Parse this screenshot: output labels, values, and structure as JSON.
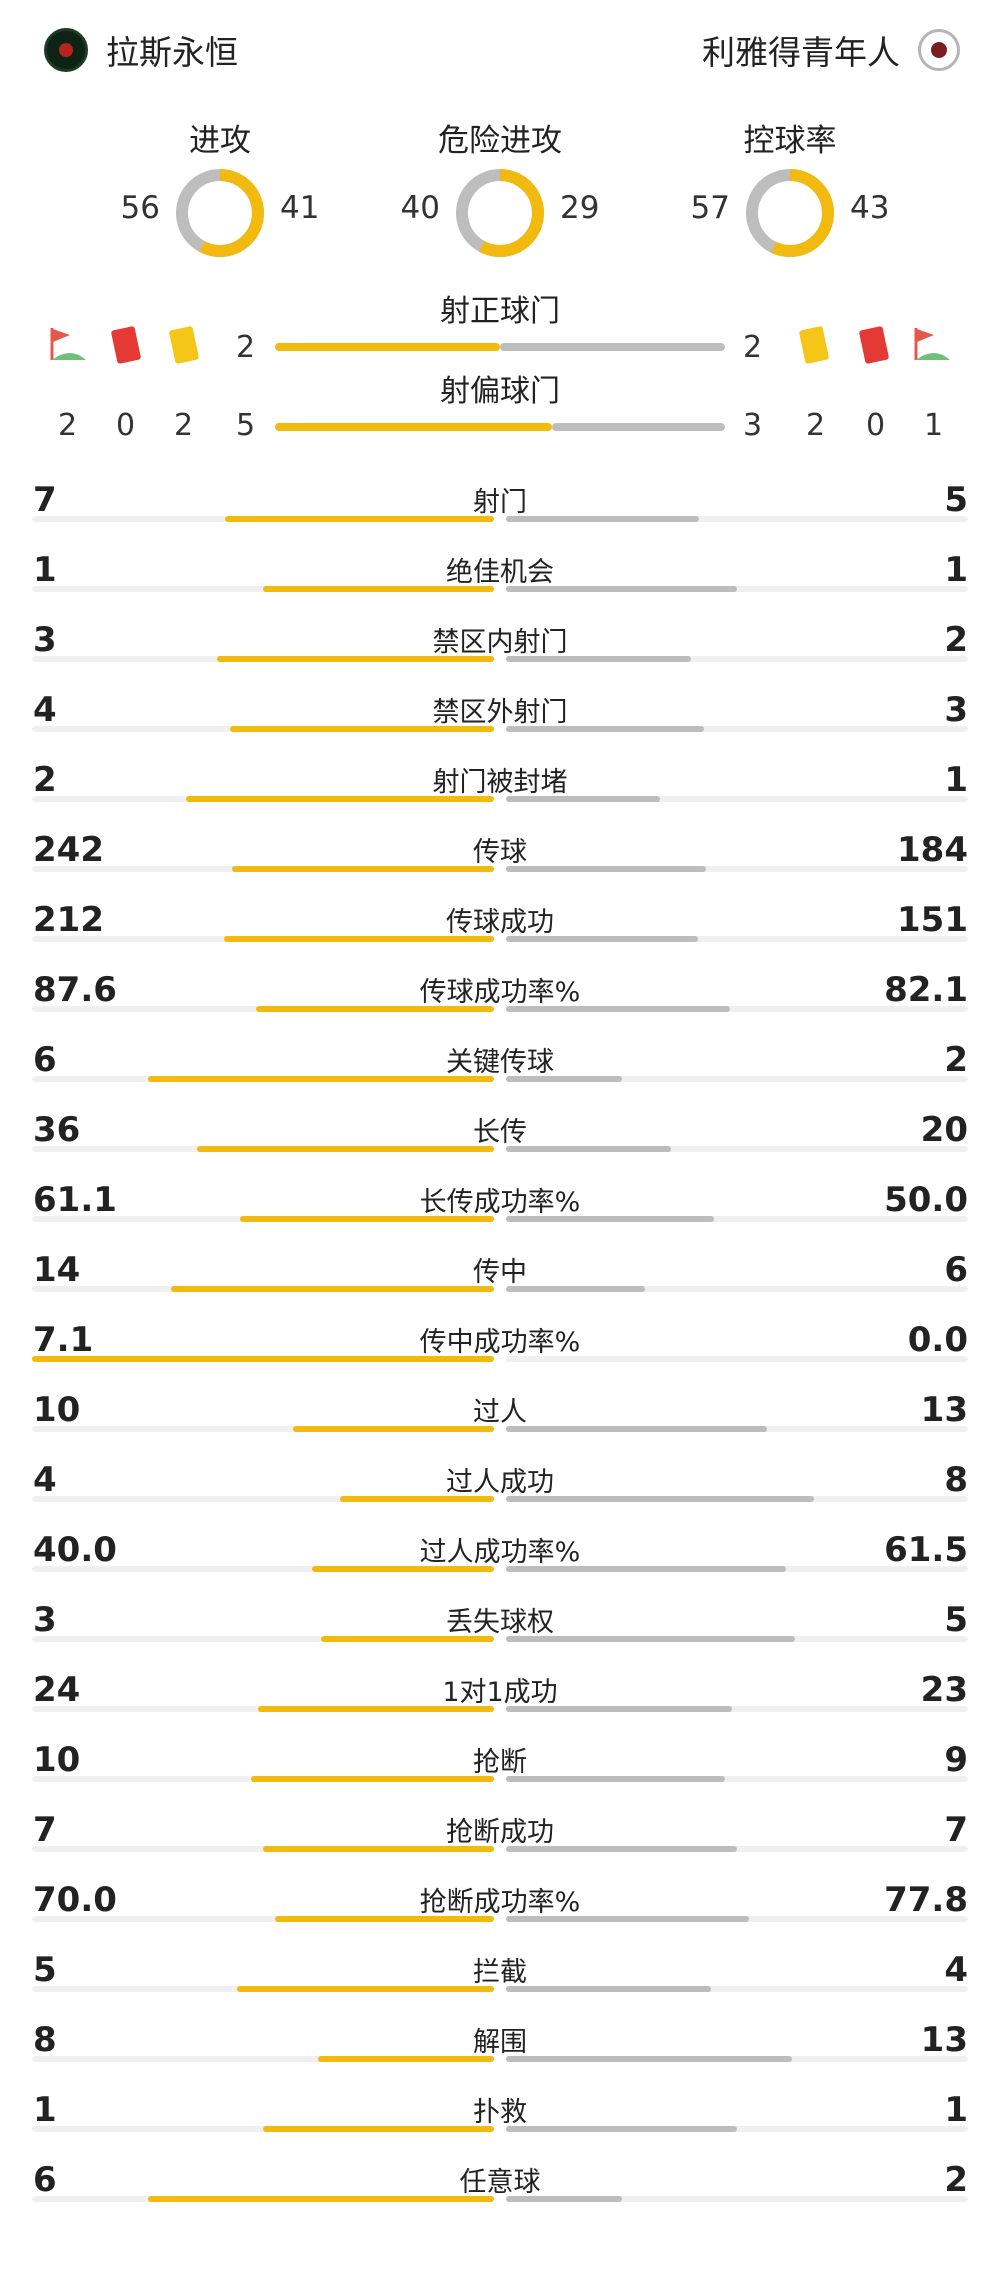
{
  "header": {
    "home_team": "拉斯永恒",
    "away_team": "利雅得青年人",
    "colors": {
      "home": "#f2b90f",
      "away": "#bdbdbd"
    }
  },
  "donuts": [
    {
      "title": "进攻",
      "home": 56,
      "away": 41
    },
    {
      "title": "危险进攻",
      "home": 40,
      "away": 29
    },
    {
      "title": "控球率",
      "home": 57,
      "away": 43
    }
  ],
  "shots_on_target": {
    "title": "射正球门",
    "home": 2,
    "away": 2,
    "icons": {
      "corner": "corner-flag-icon",
      "red": "red-card-icon",
      "yellow": "yellow-card-icon"
    }
  },
  "shots_off_target": {
    "title": "射偏球门",
    "home": 5,
    "away": 3,
    "home_corners": 2,
    "home_red_cards": 0,
    "home_yellow_cards": 2,
    "away_yellow_cards": 2,
    "away_red_cards": 0,
    "away_corners": 1
  },
  "stats": [
    {
      "label": "射门",
      "home": "7",
      "away": "5"
    },
    {
      "label": "绝佳机会",
      "home": "1",
      "away": "1"
    },
    {
      "label": "禁区内射门",
      "home": "3",
      "away": "2"
    },
    {
      "label": "禁区外射门",
      "home": "4",
      "away": "3"
    },
    {
      "label": "射门被封堵",
      "home": "2",
      "away": "1"
    },
    {
      "label": "传球",
      "home": "242",
      "away": "184"
    },
    {
      "label": "传球成功",
      "home": "212",
      "away": "151"
    },
    {
      "label": "传球成功率%",
      "home": "87.6",
      "away": "82.1"
    },
    {
      "label": "关键传球",
      "home": "6",
      "away": "2"
    },
    {
      "label": "长传",
      "home": "36",
      "away": "20"
    },
    {
      "label": "长传成功率%",
      "home": "61.1",
      "away": "50.0"
    },
    {
      "label": "传中",
      "home": "14",
      "away": "6"
    },
    {
      "label": "传中成功率%",
      "home": "7.1",
      "away": "0.0"
    },
    {
      "label": "过人",
      "home": "10",
      "away": "13"
    },
    {
      "label": "过人成功",
      "home": "4",
      "away": "8"
    },
    {
      "label": "过人成功率%",
      "home": "40.0",
      "away": "61.5"
    },
    {
      "label": "丢失球权",
      "home": "3",
      "away": "5"
    },
    {
      "label": "1对1成功",
      "home": "24",
      "away": "23"
    },
    {
      "label": "抢断",
      "home": "10",
      "away": "9"
    },
    {
      "label": "抢断成功",
      "home": "7",
      "away": "7"
    },
    {
      "label": "抢断成功率%",
      "home": "70.0",
      "away": "77.8"
    },
    {
      "label": "拦截",
      "home": "5",
      "away": "4"
    },
    {
      "label": "解围",
      "home": "8",
      "away": "13"
    },
    {
      "label": "扑救",
      "home": "1",
      "away": "1"
    },
    {
      "label": "任意球",
      "home": "6",
      "away": "2"
    }
  ]
}
